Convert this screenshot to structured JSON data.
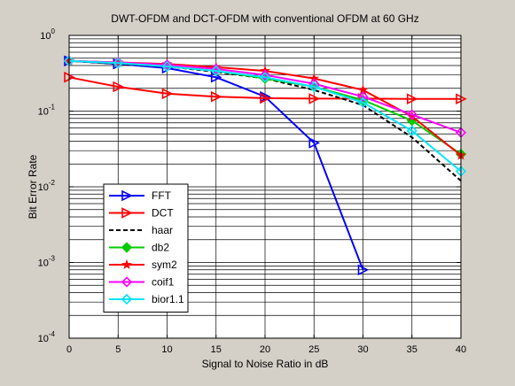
{
  "chart_data": {
    "type": "line",
    "title": "DWT-OFDM and DCT-OFDM with conventional OFDM at 60 GHz",
    "xlabel": "Signal to Noise Ratio in dB",
    "ylabel": "Bit Error Rate",
    "x_ticks": [
      "0",
      "5",
      "10",
      "15",
      "20",
      "25",
      "30",
      "35",
      "40"
    ],
    "y_ticks": [
      {
        "base": "10",
        "exp": "0",
        "value": 1
      },
      {
        "base": "10",
        "exp": "-1",
        "value": 0.1
      },
      {
        "base": "10",
        "exp": "-2",
        "value": 0.01
      },
      {
        "base": "10",
        "exp": "-3",
        "value": 0.001
      },
      {
        "base": "10",
        "exp": "-4",
        "value": 0.0001
      }
    ],
    "xlim": [
      0,
      40
    ],
    "ylim": [
      0.0001,
      1
    ],
    "yscale": "log",
    "grid": true,
    "legend_position": "lower-left",
    "x": [
      0,
      5,
      10,
      15,
      20,
      25,
      30,
      35,
      40
    ],
    "series": [
      {
        "name": "FFT",
        "color": "#0000ff",
        "marker": "triangle-right",
        "dash": "solid",
        "x": [
          0,
          5,
          10,
          15,
          20,
          25,
          30
        ],
        "values": [
          0.46,
          0.42,
          0.37,
          0.28,
          0.155,
          0.038,
          0.0008
        ]
      },
      {
        "name": "DCT",
        "color": "#ff0000",
        "marker": "triangle-right",
        "dash": "solid",
        "x": [
          0,
          5,
          10,
          15,
          20,
          25,
          30,
          35,
          40
        ],
        "values": [
          0.28,
          0.21,
          0.17,
          0.155,
          0.148,
          0.146,
          0.146,
          0.145,
          0.145
        ]
      },
      {
        "name": "haar",
        "color": "#000000",
        "marker": "none",
        "dash": "dashed",
        "x": [
          0,
          5,
          10,
          15,
          20,
          25,
          30,
          35,
          40
        ],
        "values": [
          0.46,
          0.42,
          0.39,
          0.33,
          0.27,
          0.19,
          0.12,
          0.045,
          0.012
        ]
      },
      {
        "name": "db2",
        "color": "#00cc00",
        "marker": "diamond",
        "dash": "solid",
        "x": [
          0,
          5,
          10,
          15,
          20,
          25,
          30,
          35,
          40
        ],
        "values": [
          0.46,
          0.43,
          0.39,
          0.34,
          0.27,
          0.21,
          0.14,
          0.075,
          0.027
        ]
      },
      {
        "name": "sym2",
        "color": "#ff0000",
        "marker": "star",
        "dash": "solid",
        "x": [
          0,
          5,
          10,
          15,
          20,
          25,
          30,
          35,
          40
        ],
        "values": [
          0.46,
          0.44,
          0.42,
          0.38,
          0.34,
          0.27,
          0.19,
          0.085,
          0.026
        ]
      },
      {
        "name": "coif1",
        "color": "#ff00ff",
        "marker": "diamond",
        "dash": "solid",
        "x": [
          0,
          5,
          10,
          15,
          20,
          25,
          30,
          35,
          40
        ],
        "values": [
          0.46,
          0.44,
          0.41,
          0.36,
          0.3,
          0.23,
          0.155,
          0.09,
          0.052
        ]
      },
      {
        "name": "bior1.1",
        "color": "#00e5ff",
        "marker": "diamond",
        "dash": "solid",
        "x": [
          0,
          5,
          10,
          15,
          20,
          25,
          30,
          35,
          40
        ],
        "values": [
          0.46,
          0.43,
          0.39,
          0.34,
          0.28,
          0.21,
          0.13,
          0.055,
          0.016
        ]
      }
    ]
  }
}
